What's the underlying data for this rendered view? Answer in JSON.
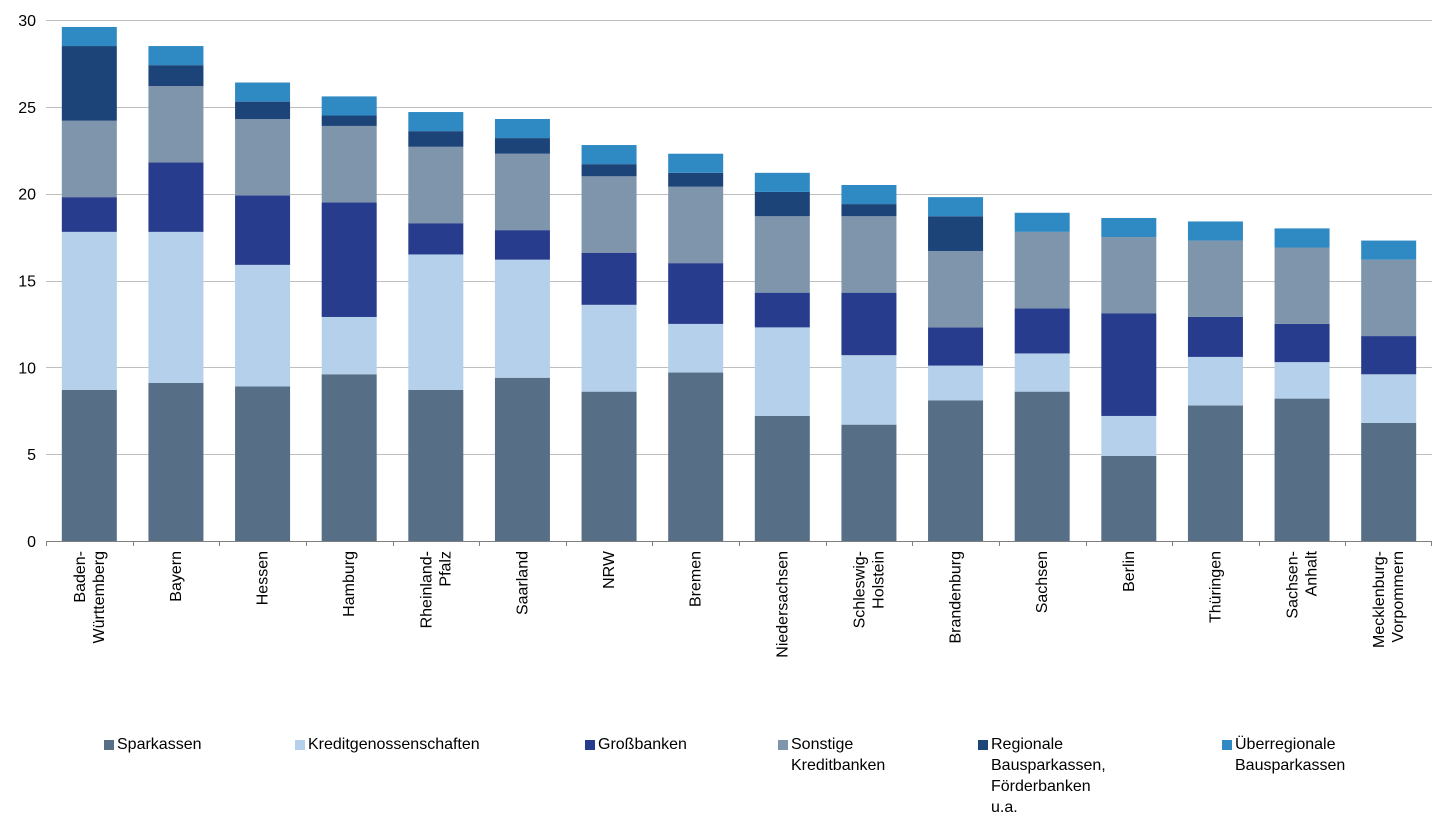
{
  "chart_data": {
    "type": "bar",
    "stacked": true,
    "title": "",
    "xlabel": "",
    "ylabel": "",
    "ylim": [
      0,
      30
    ],
    "yticks": [
      0,
      5,
      10,
      15,
      20,
      25,
      30
    ],
    "grid": true,
    "legend_position": "bottom",
    "categories": [
      "Baden-\nWürttemberg",
      "Bayern",
      "Hessen",
      "Hamburg",
      "Rheinland-\nPfalz",
      "Saarland",
      "NRW",
      "Bremen",
      "Niedersachsen",
      "Schleswig-\nHolstein",
      "Brandenburg",
      "Sachsen",
      "Berlin",
      "Thüringen",
      "Sachsen-\nAnhalt",
      "Mecklenburg-\nVorpommern"
    ],
    "series": [
      {
        "name": "Sparkassen",
        "color": "#566e86",
        "values": [
          8.7,
          9.1,
          8.9,
          9.6,
          8.7,
          9.4,
          8.6,
          9.7,
          7.2,
          6.7,
          8.1,
          8.6,
          4.9,
          7.8,
          8.2,
          6.8
        ]
      },
      {
        "name": "Kreditgenossenschaften",
        "color": "#b4d0ea",
        "values": [
          9.1,
          8.7,
          7.0,
          3.3,
          7.8,
          6.8,
          5.0,
          2.8,
          5.1,
          4.0,
          2.0,
          2.2,
          2.3,
          2.8,
          2.1,
          2.8
        ]
      },
      {
        "name": "Großbanken",
        "color": "#283c8e",
        "values": [
          2.0,
          4.0,
          4.0,
          6.6,
          1.8,
          1.7,
          3.0,
          3.5,
          2.0,
          3.6,
          2.2,
          2.6,
          5.9,
          2.3,
          2.2,
          2.2
        ]
      },
      {
        "name": "Sonstige\nKreditbanken",
        "color": "#7e95ab",
        "values": [
          4.4,
          4.4,
          4.4,
          4.4,
          4.4,
          4.4,
          4.4,
          4.4,
          4.4,
          4.4,
          4.4,
          4.4,
          4.4,
          4.4,
          4.4,
          4.4
        ]
      },
      {
        "name": "Regionale\nBausparkassen,\nFörderbanken u.a.",
        "color": "#1c4479",
        "values": [
          4.3,
          1.2,
          1.0,
          0.6,
          0.9,
          0.9,
          0.7,
          0.8,
          1.4,
          0.7,
          2.0,
          0.0,
          0.0,
          0.0,
          0.0,
          0.0
        ]
      },
      {
        "name": "Überregionale\nBausparkassen",
        "color": "#2f8ac4",
        "values": [
          1.1,
          1.1,
          1.1,
          1.1,
          1.1,
          1.1,
          1.1,
          1.1,
          1.1,
          1.1,
          1.1,
          1.1,
          1.1,
          1.1,
          1.1,
          1.1
        ]
      }
    ]
  }
}
